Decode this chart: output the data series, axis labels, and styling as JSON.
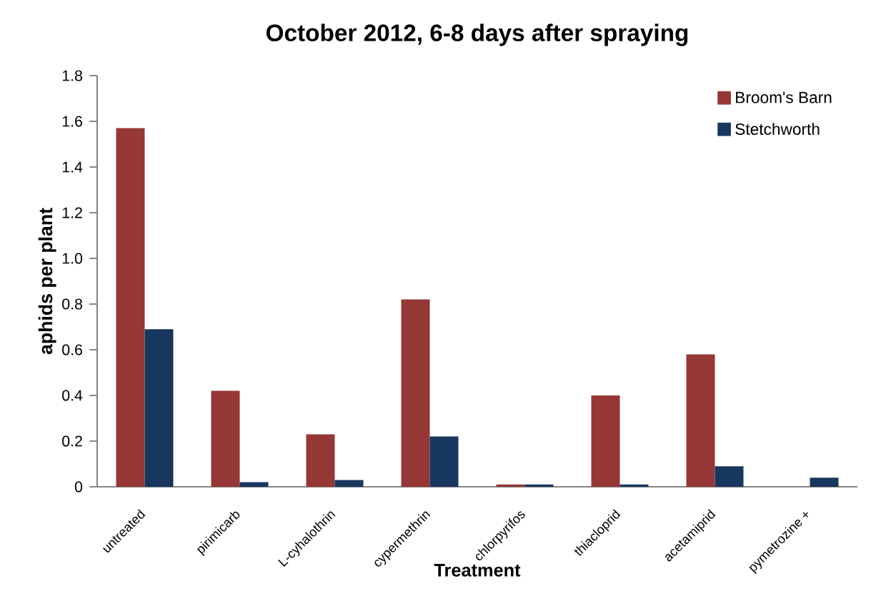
{
  "chart_data": {
    "type": "bar",
    "title": "October 2012, 6-8 days after spraying",
    "xlabel": "Treatment",
    "ylabel": "aphids per plant",
    "categories": [
      "untreated",
      "pirimicarb",
      "L-cyhalothrin",
      "cypermethrin",
      "chlorpyrifos",
      "thiacloprid",
      "acetamiprid",
      "pymetrozine +"
    ],
    "series": [
      {
        "name": "Broom's Barn",
        "color": "#953735",
        "values": [
          1.57,
          0.42,
          0.23,
          0.82,
          0.01,
          0.4,
          0.58,
          0
        ]
      },
      {
        "name": "Stetchworth",
        "color": "#17375e",
        "values": [
          0.69,
          0.02,
          0.03,
          0.22,
          0.01,
          0.01,
          0.09,
          0.04
        ]
      }
    ],
    "ylim": [
      0,
      1.8
    ],
    "yticks": [
      0,
      0.2,
      0.4,
      0.6,
      0.8,
      {
        "value": 1.0,
        "label": "1.0"
      },
      1.2,
      1.4,
      1.6,
      1.8
    ],
    "legend": "top right",
    "grid": false
  }
}
